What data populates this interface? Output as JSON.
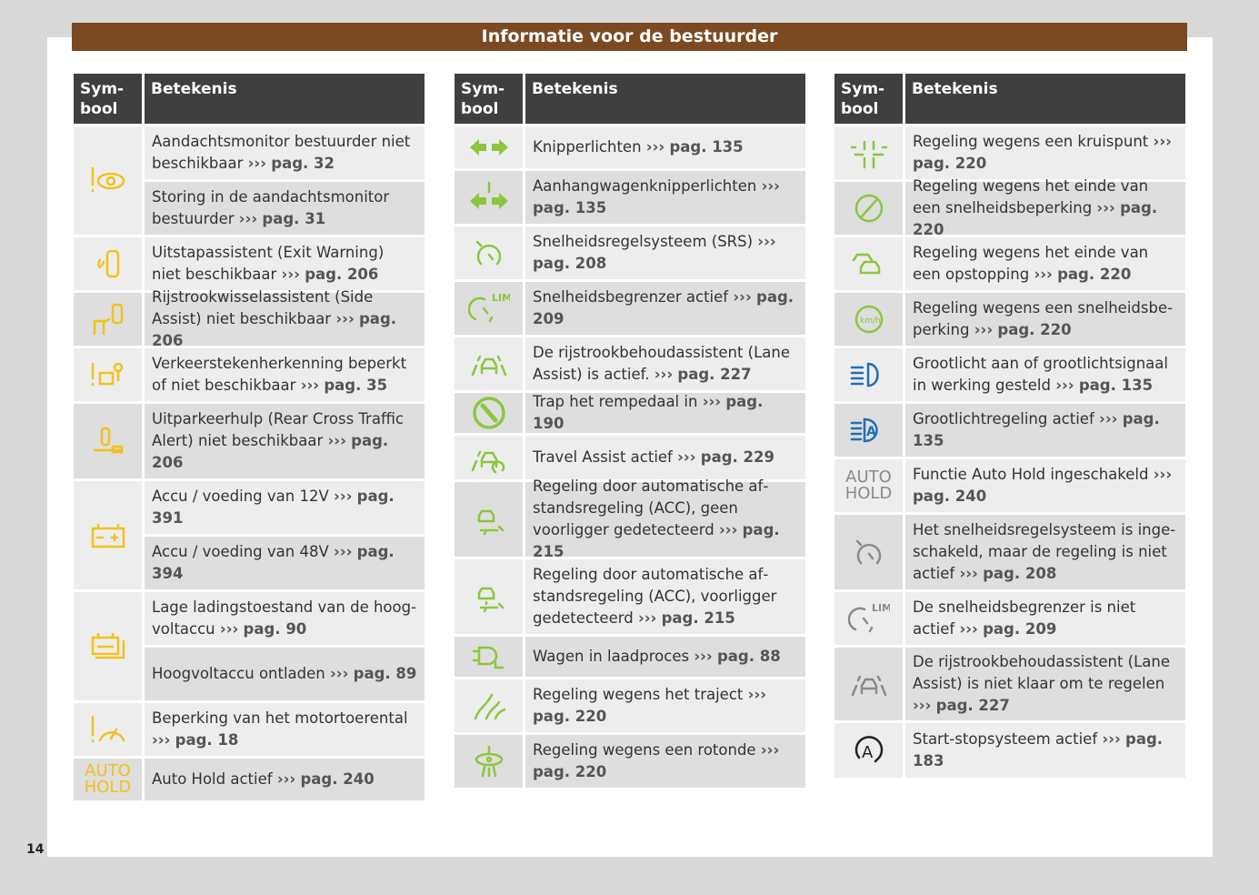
{
  "title": "Informatie voor de bestuurder",
  "page_number": "14",
  "header": {
    "symbol": "Sym-\nbool",
    "meaning": "Betekenis"
  },
  "arrow": "›››",
  "colors": {
    "yellow": "#f2c21b",
    "green": "#8cc63f",
    "blue": "#1f6fb5",
    "grey": "#8a8a8a",
    "black": "#222222"
  },
  "columns": [
    [
      {
        "icon": "attention-monitor-icon",
        "color": "yellow",
        "rows": [
          {
            "text": "Aandachtsmonitor bestuurder niet beschikbaar",
            "page": "pag. 32"
          },
          {
            "text": "Storing in de aandachtsmonitor be­stuurder",
            "page": "pag. 31"
          }
        ]
      },
      {
        "icon": "exit-warning-icon",
        "color": "yellow",
        "rows": [
          {
            "text": "Uitstapassistent (Exit Warning) niet beschikbaar",
            "page": "pag. 206"
          }
        ]
      },
      {
        "icon": "side-assist-icon",
        "color": "yellow",
        "rows": [
          {
            "text": "Rijstrookwisselassistent (Side Assist) niet beschikbaar",
            "page": "pag. 206"
          }
        ]
      },
      {
        "icon": "traffic-sign-recognition-icon",
        "color": "yellow",
        "rows": [
          {
            "text": "Verkeerstekenherkenning beperkt of niet beschikbaar",
            "page": "pag. 35"
          }
        ]
      },
      {
        "icon": "rear-cross-traffic-icon",
        "color": "yellow",
        "rows": [
          {
            "text": "Uitparkeerhulp (Rear Cross Traffic Alert) niet beschikbaar",
            "page": "pag. 206"
          }
        ]
      },
      {
        "icon": "battery-icon",
        "color": "yellow",
        "rows": [
          {
            "text": "Accu / voeding van 12V",
            "page": "pag. 391"
          },
          {
            "text": "Accu / voeding van 48V",
            "page": "pag. 394"
          }
        ]
      },
      {
        "icon": "high-voltage-battery-icon",
        "color": "yellow",
        "rows": [
          {
            "text": "Lage ladingstoestand van de hoog­voltaccu",
            "page": "pag. 90"
          },
          {
            "text": "Hoogvoltaccu ontladen",
            "page": "pag. 89"
          }
        ]
      },
      {
        "icon": "engine-speed-limit-icon",
        "color": "yellow",
        "rows": [
          {
            "text": "Beperking van het motortoerental",
            "page": "pag. 18"
          }
        ]
      },
      {
        "icon": "auto-hold-icon",
        "label": "AUTO\nHOLD",
        "color": "yellow",
        "rows": [
          {
            "text": "Auto Hold actief",
            "page": "pag. 240"
          }
        ]
      }
    ],
    [
      {
        "icon": "turn-signals-icon",
        "color": "green",
        "rows": [
          {
            "text": "Knipperlichten",
            "page": "pag. 135"
          }
        ]
      },
      {
        "icon": "trailer-turn-signals-icon",
        "color": "green",
        "rows": [
          {
            "text": "Aanhangwagenknipperlichten",
            "page": "pag. 135"
          }
        ]
      },
      {
        "icon": "cruise-control-icon",
        "color": "green",
        "rows": [
          {
            "text": "Snelheidsregelsysteem (SRS)",
            "page": "pag. 208"
          }
        ]
      },
      {
        "icon": "speed-limiter-icon",
        "color": "green",
        "rows": [
          {
            "text": "Snelheidsbegrenzer actief",
            "page": "pag. 209"
          }
        ]
      },
      {
        "icon": "lane-assist-icon",
        "color": "green",
        "rows": [
          {
            "text": "De rijstrookbehoudassistent (Lane Assist) is actief.",
            "page": "pag. 227"
          }
        ]
      },
      {
        "icon": "brake-pedal-icon",
        "color": "green",
        "rows": [
          {
            "text": "Trap het rempedaal in",
            "page": "pag. 190"
          }
        ]
      },
      {
        "icon": "travel-assist-icon",
        "color": "green",
        "rows": [
          {
            "text": "Travel Assist actief",
            "page": "pag. 229"
          }
        ]
      },
      {
        "icon": "acc-no-vehicle-icon",
        "color": "green",
        "rows": [
          {
            "text": "Regeling door automatische af­standsregeling (ACC), geen voorlig­ger gedetecteerd",
            "page": "pag. 215"
          }
        ]
      },
      {
        "icon": "acc-vehicle-icon",
        "color": "green",
        "rows": [
          {
            "text": "Regeling door automatische af­standsregeling (ACC), voorligger gedetecteerd",
            "page": "pag. 215"
          }
        ]
      },
      {
        "icon": "charging-icon",
        "color": "green",
        "rows": [
          {
            "text": "Wagen in laadproces",
            "page": "pag. 88"
          }
        ]
      },
      {
        "icon": "route-icon",
        "color": "green",
        "rows": [
          {
            "text": "Regeling wegens het traject",
            "page": "pag. 220"
          }
        ]
      },
      {
        "icon": "roundabout-icon",
        "color": "green",
        "rows": [
          {
            "text": "Regeling wegens een rotonde",
            "page": "pag. 220"
          }
        ]
      }
    ],
    [
      {
        "icon": "intersection-icon",
        "color": "green",
        "rows": [
          {
            "text": "Regeling wegens een kruispunt",
            "page": "pag. 220"
          }
        ]
      },
      {
        "icon": "end-speed-limit-icon",
        "color": "green",
        "rows": [
          {
            "text": "Regeling wegens het einde van een snelheidsbeperking",
            "page": "pag. 220"
          }
        ]
      },
      {
        "icon": "traffic-jam-end-icon",
        "color": "green",
        "rows": [
          {
            "text": "Regeling wegens het einde van een opstopping",
            "page": "pag. 220"
          }
        ]
      },
      {
        "icon": "speed-limit-kmh-icon",
        "label": "km/h",
        "color": "green",
        "rows": [
          {
            "text": "Regeling wegens een snelheidsbe­perking",
            "page": "pag. 220"
          }
        ]
      },
      {
        "icon": "high-beam-icon",
        "color": "blue",
        "rows": [
          {
            "text": "Grootlicht aan of grootlichtsignaal in werking gesteld",
            "page": "pag. 135"
          }
        ]
      },
      {
        "icon": "high-beam-assist-icon",
        "color": "blue",
        "rows": [
          {
            "text": "Grootlichtregeling actief",
            "page": "pag. 135"
          }
        ]
      },
      {
        "icon": "auto-hold-icon",
        "label": "AUTO\nHOLD",
        "color": "grey",
        "rows": [
          {
            "text": "Functie Auto Hold ingeschakeld",
            "page": "pag. 240"
          }
        ]
      },
      {
        "icon": "cruise-control-icon",
        "color": "grey",
        "rows": [
          {
            "text": "Het snelheidsregelsysteem is inge­schakeld, maar de regeling is niet actief",
            "page": "pag. 208"
          }
        ]
      },
      {
        "icon": "speed-limiter-icon",
        "color": "grey",
        "rows": [
          {
            "text": "De snelheidsbegrenzer is niet actief",
            "page": "pag. 209"
          }
        ]
      },
      {
        "icon": "lane-assist-icon",
        "color": "grey",
        "rows": [
          {
            "text": "De rijstrookbehoudassistent (Lane Assist) is niet klaar om te regelen",
            "page": "pag. 227"
          }
        ]
      },
      {
        "icon": "start-stop-icon",
        "color": "black",
        "rows": [
          {
            "text": "Start-stopsysteem actief",
            "page": "pag. 183"
          }
        ]
      }
    ]
  ]
}
